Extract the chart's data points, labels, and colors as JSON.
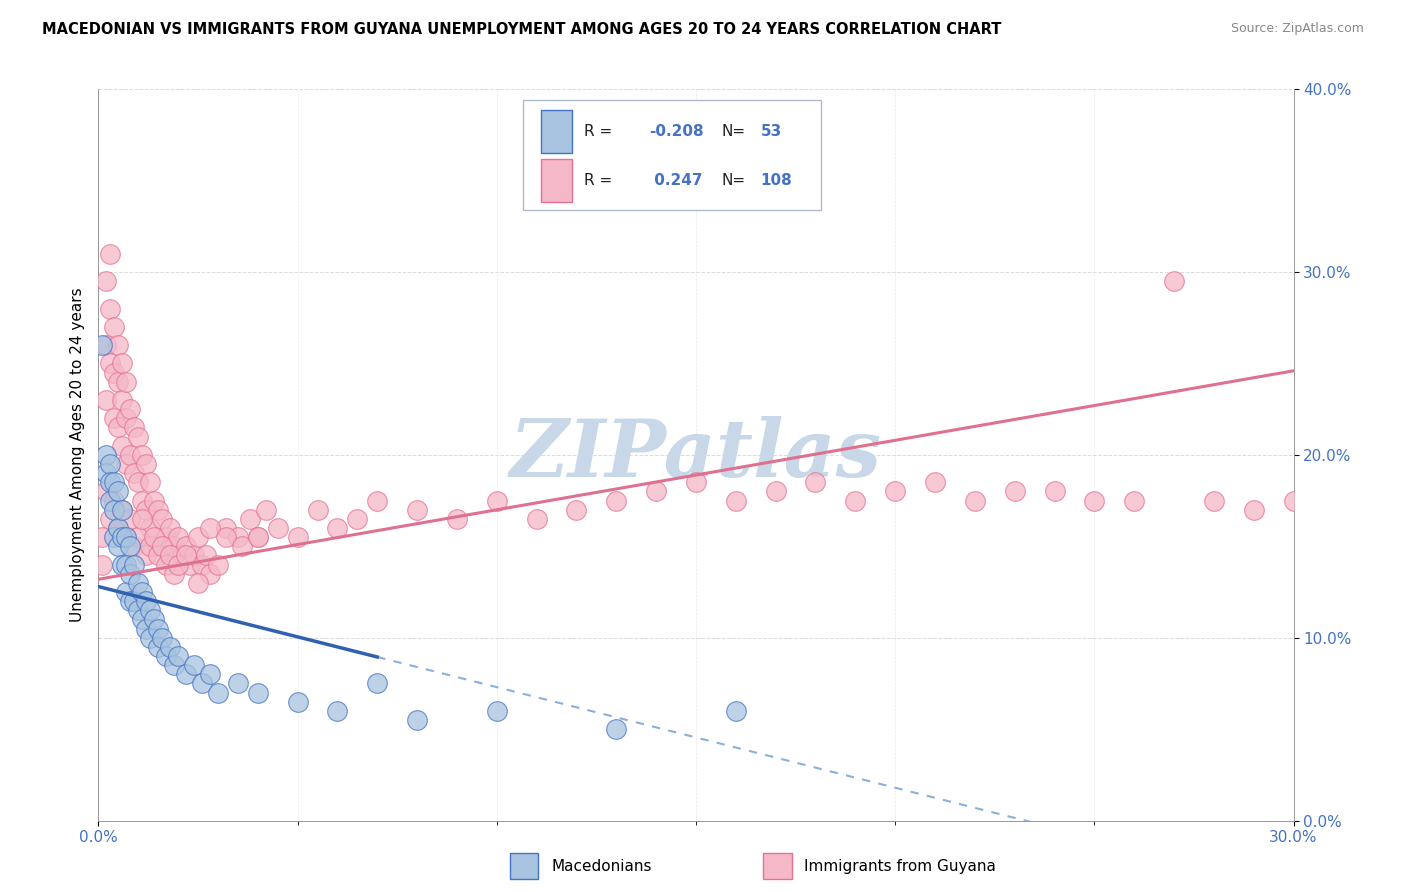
{
  "title": "MACEDONIAN VS IMMIGRANTS FROM GUYANA UNEMPLOYMENT AMONG AGES 20 TO 24 YEARS CORRELATION CHART",
  "source": "Source: ZipAtlas.com",
  "ylabel": "Unemployment Among Ages 20 to 24 years",
  "legend_label1": "Macedonians",
  "legend_label2": "Immigrants from Guyana",
  "r1": -0.208,
  "n1": 53,
  "r2": 0.247,
  "n2": 108,
  "color_blue": "#a8c4e0",
  "color_pink": "#f4b8c8",
  "color_blue_dark": "#4472C4",
  "color_pink_dark": "#E87090",
  "trend_blue_solid": "#3060B0",
  "trend_blue_dash": "#8ab0d8",
  "trend_pink": "#E07090",
  "watermark_color": "#c8d8e8",
  "xlim": [
    0.0,
    0.3
  ],
  "ylim": [
    0.0,
    0.4
  ],
  "mac_x": [
    0.001,
    0.002,
    0.002,
    0.003,
    0.003,
    0.003,
    0.004,
    0.004,
    0.004,
    0.005,
    0.005,
    0.005,
    0.006,
    0.006,
    0.006,
    0.007,
    0.007,
    0.007,
    0.008,
    0.008,
    0.008,
    0.009,
    0.009,
    0.01,
    0.01,
    0.011,
    0.011,
    0.012,
    0.012,
    0.013,
    0.013,
    0.014,
    0.015,
    0.015,
    0.016,
    0.017,
    0.018,
    0.019,
    0.02,
    0.022,
    0.024,
    0.026,
    0.028,
    0.03,
    0.035,
    0.04,
    0.05,
    0.06,
    0.07,
    0.08,
    0.1,
    0.13,
    0.16
  ],
  "mac_y": [
    0.26,
    0.2,
    0.19,
    0.195,
    0.185,
    0.175,
    0.185,
    0.17,
    0.155,
    0.18,
    0.16,
    0.15,
    0.17,
    0.155,
    0.14,
    0.155,
    0.14,
    0.125,
    0.15,
    0.135,
    0.12,
    0.14,
    0.12,
    0.13,
    0.115,
    0.125,
    0.11,
    0.12,
    0.105,
    0.115,
    0.1,
    0.11,
    0.105,
    0.095,
    0.1,
    0.09,
    0.095,
    0.085,
    0.09,
    0.08,
    0.085,
    0.075,
    0.08,
    0.07,
    0.075,
    0.07,
    0.065,
    0.06,
    0.075,
    0.055,
    0.06,
    0.05,
    0.06
  ],
  "guy_x": [
    0.001,
    0.001,
    0.002,
    0.002,
    0.002,
    0.003,
    0.003,
    0.003,
    0.004,
    0.004,
    0.004,
    0.005,
    0.005,
    0.005,
    0.006,
    0.006,
    0.006,
    0.007,
    0.007,
    0.007,
    0.008,
    0.008,
    0.009,
    0.009,
    0.01,
    0.01,
    0.011,
    0.011,
    0.012,
    0.012,
    0.013,
    0.013,
    0.014,
    0.015,
    0.015,
    0.016,
    0.017,
    0.018,
    0.019,
    0.02,
    0.021,
    0.022,
    0.023,
    0.024,
    0.025,
    0.026,
    0.027,
    0.028,
    0.03,
    0.032,
    0.035,
    0.038,
    0.04,
    0.042,
    0.045,
    0.05,
    0.055,
    0.06,
    0.065,
    0.07,
    0.08,
    0.09,
    0.1,
    0.11,
    0.12,
    0.13,
    0.14,
    0.15,
    0.16,
    0.17,
    0.18,
    0.19,
    0.2,
    0.21,
    0.22,
    0.23,
    0.24,
    0.25,
    0.26,
    0.27,
    0.28,
    0.29,
    0.3,
    0.002,
    0.003,
    0.004,
    0.005,
    0.006,
    0.007,
    0.008,
    0.009,
    0.01,
    0.011,
    0.012,
    0.013,
    0.014,
    0.015,
    0.016,
    0.017,
    0.018,
    0.019,
    0.02,
    0.022,
    0.025,
    0.028,
    0.032,
    0.036,
    0.04
  ],
  "guy_y": [
    0.155,
    0.14,
    0.295,
    0.26,
    0.23,
    0.31,
    0.28,
    0.25,
    0.27,
    0.245,
    0.22,
    0.26,
    0.24,
    0.215,
    0.25,
    0.23,
    0.205,
    0.24,
    0.22,
    0.195,
    0.225,
    0.2,
    0.215,
    0.19,
    0.21,
    0.185,
    0.2,
    0.175,
    0.195,
    0.17,
    0.185,
    0.16,
    0.175,
    0.17,
    0.15,
    0.165,
    0.155,
    0.16,
    0.15,
    0.155,
    0.145,
    0.15,
    0.14,
    0.145,
    0.155,
    0.14,
    0.145,
    0.135,
    0.14,
    0.16,
    0.155,
    0.165,
    0.155,
    0.17,
    0.16,
    0.155,
    0.17,
    0.16,
    0.165,
    0.175,
    0.17,
    0.165,
    0.175,
    0.165,
    0.17,
    0.175,
    0.18,
    0.185,
    0.175,
    0.18,
    0.185,
    0.175,
    0.18,
    0.185,
    0.175,
    0.18,
    0.18,
    0.175,
    0.175,
    0.295,
    0.175,
    0.17,
    0.175,
    0.18,
    0.165,
    0.175,
    0.16,
    0.17,
    0.155,
    0.165,
    0.15,
    0.155,
    0.165,
    0.145,
    0.15,
    0.155,
    0.145,
    0.15,
    0.14,
    0.145,
    0.135,
    0.14,
    0.145,
    0.13,
    0.16,
    0.155,
    0.15,
    0.155
  ]
}
